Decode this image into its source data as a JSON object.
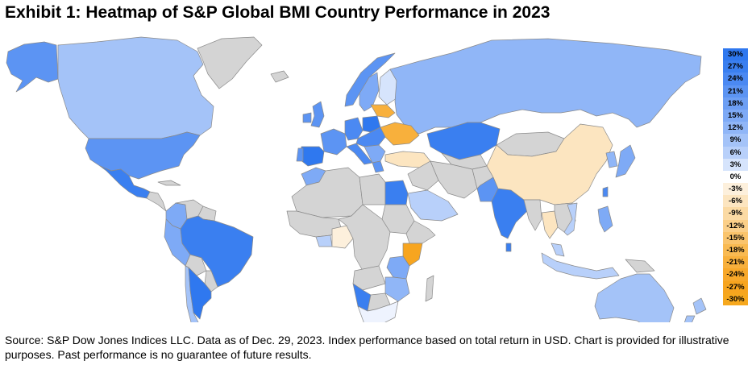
{
  "title": "Exhibit 1: Heatmap of S&P Global BMI Country Performance in 2023",
  "legend": {
    "labels": [
      "30%",
      "27%",
      "24%",
      "21%",
      "18%",
      "15%",
      "12%",
      "9%",
      "6%",
      "3%",
      "0%",
      "-3%",
      "-6%",
      "-9%",
      "-12%",
      "-15%",
      "-18%",
      "-21%",
      "-24%",
      "-27%",
      "-30%"
    ],
    "colors": [
      "#2f78ef",
      "#3a7ff0",
      "#4b89f2",
      "#5c94f3",
      "#6d9ff4",
      "#7eaaf6",
      "#90b6f7",
      "#a4c3f8",
      "#b8d0fa",
      "#d6e4fc",
      "#ffffff",
      "#fdf0dc",
      "#fce5c0",
      "#fbdaa4",
      "#fbcf88",
      "#fac46c",
      "#f9ba52",
      "#f8b03c",
      "#f8a82a",
      "#f7a51f",
      "#f6a81e"
    ]
  },
  "colors": {
    "no_data": "#d4d4d4",
    "border": "#8a8a8a"
  },
  "source": "Source: S&P Dow Jones Indices LLC. Data as of Dec. 29, 2023. Index performance based on total return in USD. Chart is provided for illustrative purposes. Past performance is no guarantee of future results."
}
